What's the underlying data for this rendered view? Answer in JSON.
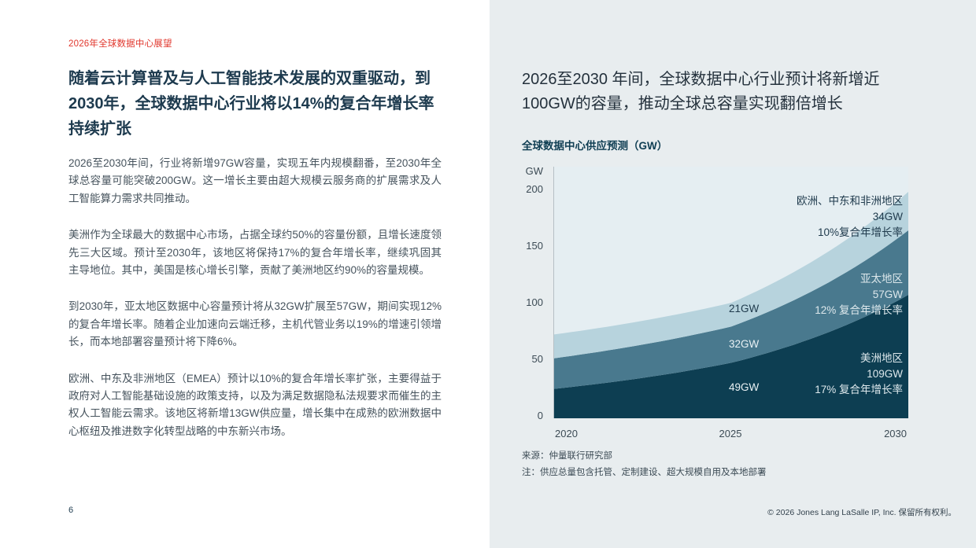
{
  "page": {
    "page_number": "6",
    "footer_copyright": "© 2026 Jones Lang LaSalle IP, Inc. 保留所有权利。"
  },
  "left": {
    "eyebrow": "2026年全球数据中心展望",
    "title": "随着云计算普及与人工智能技术发展的双重驱动，到2030年，全球数据中心行业将以14%的复合年增长率持续扩张",
    "title_lines": [
      "随着云计算普及与人工智能技术发展的双重驱动，到",
      "2030年，全球数据中心行业将以14%的复合年增长率",
      "持续扩张"
    ],
    "paragraphs": [
      "2026至2030年间，行业将新增97GW容量，实现五年内规模翻番，至2030年全球总容量可能突破200GW。这一增长主要由超大规模云服务商的扩展需求及人工智能算力需求共同推动。",
      "美洲作为全球最大的数据中心市场，占据全球约50%的容量份额，且增长速度领先三大区域。预计至2030年，该地区将保持17%的复合年增长率，继续巩固其主导地位。其中，美国是核心增长引擎，贡献了美洲地区约90%的容量规模。",
      "到2030年，亚太地区数据中心容量预计将从32GW扩展至57GW，期间实现12%的复合年增长率。随着企业加速向云端迁移，主机代管业务以19%的增速引领增长，而本地部署容量预计将下降6%。",
      "欧洲、中东及非洲地区（EMEA）预计以10%的复合年增长率扩张，主要得益于政府对人工智能基础设施的政策支持，以及为满足数据隐私法规要求而催生的主权人工智能云需求。该地区将新增13GW供应量，增长集中在成熟的欧洲数据中心枢纽及推进数字化转型战略的中东新兴市场。"
    ]
  },
  "right": {
    "headline": "2026至2030 年间，全球数据中心行业预计将新增近100GW的容量，推动全球总容量实现翻倍增长",
    "headline_lines": [
      "2026至2030 年间，全球数据中心行业预计将新增近",
      "100GW的容量，推动全球总容量实现翻倍增长"
    ],
    "source": "来源：仲量联行研究部",
    "note": "注：供应总量包含托管、定制建设、超大规模自用及本地部署"
  },
  "chart_data": {
    "type": "area",
    "stacked": true,
    "title": "全球数据中心供应预测（GW）",
    "y_axis_unit": "GW",
    "x": [
      2020,
      2025,
      2030
    ],
    "x_tick_labels": [
      "2020",
      "2025",
      "2030"
    ],
    "ylim": [
      0,
      200
    ],
    "y_ticks": [
      0,
      50,
      100,
      150,
      200
    ],
    "y_tick_labels": [
      "200",
      "150",
      "100",
      "50",
      "0"
    ],
    "grid": false,
    "legend_position": "in-plot-right",
    "plot_bg": "#e5eef2",
    "series": [
      {
        "name": "美洲地区",
        "color": "#0d3e52",
        "values": [
          26,
          49,
          109
        ],
        "cagr": "17%",
        "value_2030": "109GW"
      },
      {
        "name": "亚太地区",
        "color": "#49798e",
        "values": [
          27,
          32,
          57
        ],
        "cagr": "12%",
        "value_2030": "57GW"
      },
      {
        "name": "欧洲、中东和非洲地区",
        "color": "#b7d3dd",
        "values": [
          21,
          21,
          34
        ],
        "cagr": "10%",
        "value_2030": "34GW"
      }
    ],
    "inband_labels_2025": {
      "americas": "49GW",
      "apac": "32GW",
      "emea": "21GW"
    },
    "callouts": [
      {
        "lines": [
          "欧洲、中东和非洲地区",
          "34GW",
          "10%复合年增长率"
        ]
      },
      {
        "lines": [
          "亚太地区",
          "57GW",
          "12% 复合年增长率"
        ]
      },
      {
        "lines": [
          "美洲地区",
          "109GW",
          "17% 复合年增长率"
        ]
      }
    ]
  }
}
